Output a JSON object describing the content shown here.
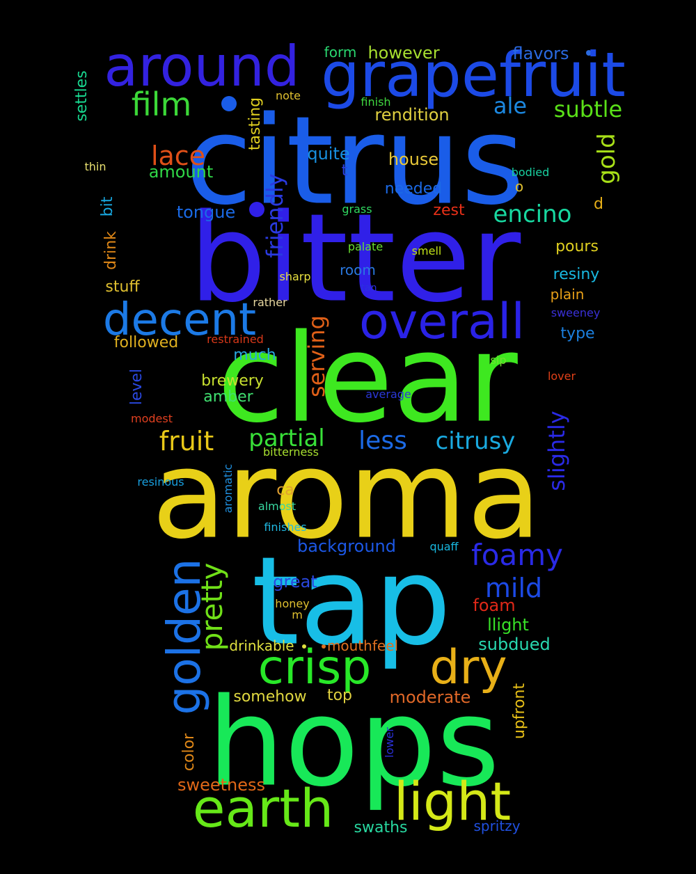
{
  "words": [
    {
      "text": "citrus",
      "color": "#1a5de8"
    },
    {
      "text": "bitter",
      "color": "#3020e8"
    },
    {
      "text": "clear",
      "color": "#3ee820"
    },
    {
      "text": "aroma",
      "color": "#e8d018"
    },
    {
      "text": "tap",
      "color": "#18bee6"
    },
    {
      "text": "hops",
      "color": "#18e858"
    },
    {
      "text": "grapefruit",
      "color": "#1c4ae6"
    },
    {
      "text": "around",
      "color": "#3322e0"
    },
    {
      "text": "overall",
      "color": "#2a22e6"
    },
    {
      "text": "decent",
      "color": "#1c7ae6"
    },
    {
      "text": "earth",
      "color": "#66e818"
    },
    {
      "text": "light",
      "color": "#d4e818"
    },
    {
      "text": "crisp",
      "color": "#28e828"
    },
    {
      "text": "dry",
      "color": "#e8b018"
    },
    {
      "text": "golden",
      "color": "#1c72e6"
    },
    {
      "text": "film",
      "color": "#3cd838"
    },
    {
      "text": "lace",
      "color": "#e05018"
    },
    {
      "text": "amount",
      "color": "#30d848"
    },
    {
      "text": "tasting",
      "color": "#e0d020"
    },
    {
      "text": "friendly",
      "color": "#2a3ae0"
    },
    {
      "text": "serving",
      "color": "#e06018"
    },
    {
      "text": "partial",
      "color": "#38e038"
    },
    {
      "text": "fruit",
      "color": "#e8c818"
    },
    {
      "text": "less",
      "color": "#1c6ae6"
    },
    {
      "text": "citrusy",
      "color": "#1aaae0"
    },
    {
      "text": "slightly",
      "color": "#2a2ae6"
    },
    {
      "text": "foamy",
      "color": "#2a2ae6"
    },
    {
      "text": "mild",
      "color": "#1c4ae6"
    },
    {
      "text": "pretty",
      "color": "#70e018"
    },
    {
      "text": "encino",
      "color": "#18d8a0"
    },
    {
      "text": "subtle",
      "color": "#5ae018"
    },
    {
      "text": "ale",
      "color": "#1c88e0"
    },
    {
      "text": "gold",
      "color": "#a8e018"
    },
    {
      "text": "flavors",
      "color": "#2a6ae0"
    },
    {
      "text": "however",
      "color": "#a8e030"
    },
    {
      "text": "form",
      "color": "#2ad870"
    },
    {
      "text": "rendition",
      "color": "#e0d040"
    },
    {
      "text": "finish",
      "color": "#40d840"
    },
    {
      "text": "note",
      "color": "#e0c030"
    },
    {
      "text": "settles",
      "color": "#18d890"
    },
    {
      "text": "thin",
      "color": "#e8e070"
    },
    {
      "text": "quite",
      "color": "#1890e0"
    },
    {
      "text": "house",
      "color": "#e8c838"
    },
    {
      "text": "t",
      "color": "#2a40e0"
    },
    {
      "text": "needed",
      "color": "#1c6ae6"
    },
    {
      "text": "bodied",
      "color": "#18d0a0"
    },
    {
      "text": "o",
      "color": "#e0c030"
    },
    {
      "text": "d",
      "color": "#e8b018"
    },
    {
      "text": "grass",
      "color": "#30d860"
    },
    {
      "text": "zest",
      "color": "#e83018"
    },
    {
      "text": "tongue",
      "color": "#1a6ae6"
    },
    {
      "text": "drink",
      "color": "#e08818"
    },
    {
      "text": "bit",
      "color": "#18a8e0"
    },
    {
      "text": "pours",
      "color": "#e0d020"
    },
    {
      "text": "palate",
      "color": "#68e030"
    },
    {
      "text": "smell",
      "color": "#c0e018"
    },
    {
      "text": "room",
      "color": "#2a78e0"
    },
    {
      "text": "resiny",
      "color": "#18b8e0"
    },
    {
      "text": "stuff",
      "color": "#e0c030"
    },
    {
      "text": "sharp",
      "color": "#e8e040"
    },
    {
      "text": "tan",
      "color": "#2a30e0"
    },
    {
      "text": "plain",
      "color": "#e8a018"
    },
    {
      "text": "rather",
      "color": "#e8d8a0"
    },
    {
      "text": "sweeney",
      "color": "#3a30d8"
    },
    {
      "text": "followed",
      "color": "#e0b020"
    },
    {
      "text": "restrained",
      "color": "#d83818"
    },
    {
      "text": "type",
      "color": "#1c80e0"
    },
    {
      "text": "much",
      "color": "#2aa8e0"
    },
    {
      "text": "sip",
      "color": "#70e030"
    },
    {
      "text": "level",
      "color": "#2a48e0"
    },
    {
      "text": "brewery",
      "color": "#c8e030"
    },
    {
      "text": "lover",
      "color": "#e04018"
    },
    {
      "text": "amber",
      "color": "#40e070"
    },
    {
      "text": "average",
      "color": "#2a38d8"
    },
    {
      "text": "modest",
      "color": "#e04020"
    },
    {
      "text": "bitterness",
      "color": "#a8e030"
    },
    {
      "text": "aromatic",
      "color": "#2090e0"
    },
    {
      "text": "resinous",
      "color": "#18a0e0"
    },
    {
      "text": "ca",
      "color": "#e0a030"
    },
    {
      "text": "almost",
      "color": "#38d8a0"
    },
    {
      "text": "finishes",
      "color": "#20b8e0"
    },
    {
      "text": "background",
      "color": "#1c58e6"
    },
    {
      "text": "quaff",
      "color": "#18b8e0"
    },
    {
      "text": "great",
      "color": "#2a48e0"
    },
    {
      "text": "honey",
      "color": "#e0c030"
    },
    {
      "text": "m",
      "color": "#e0c030"
    },
    {
      "text": "foam",
      "color": "#e02818"
    },
    {
      "text": "llight",
      "color": "#38e028"
    },
    {
      "text": "drinkable",
      "color": "#e0e040"
    },
    {
      "text": "mouthfeel",
      "color": "#e07020"
    },
    {
      "text": "subdued",
      "color": "#28d8b0"
    },
    {
      "text": "somehow",
      "color": "#e0d840"
    },
    {
      "text": "top",
      "color": "#e0d040"
    },
    {
      "text": "moderate",
      "color": "#e06828"
    },
    {
      "text": "upfront",
      "color": "#e8c018"
    },
    {
      "text": "color",
      "color": "#e08818"
    },
    {
      "text": "lower",
      "color": "#2a30d8"
    },
    {
      "text": "sweetness",
      "color": "#e06818"
    },
    {
      "text": "swaths",
      "color": "#28d8a0"
    },
    {
      "text": "spritzy",
      "color": "#2050e0"
    }
  ]
}
